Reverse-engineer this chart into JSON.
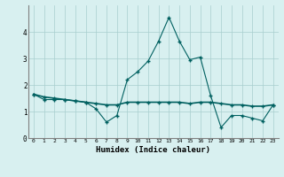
{
  "xlabel": "Humidex (Indice chaleur)",
  "x": [
    0,
    1,
    2,
    3,
    4,
    5,
    6,
    7,
    8,
    9,
    10,
    11,
    12,
    13,
    14,
    15,
    16,
    17,
    18,
    19,
    20,
    21,
    22,
    23
  ],
  "y_line1": [
    1.65,
    1.45,
    1.45,
    1.45,
    1.4,
    1.35,
    1.1,
    0.6,
    0.85,
    2.2,
    2.5,
    2.9,
    3.65,
    4.55,
    3.65,
    2.95,
    3.05,
    1.6,
    0.4,
    0.85,
    0.85,
    0.75,
    0.65,
    1.25
  ],
  "y_line2": [
    1.65,
    1.55,
    1.5,
    1.45,
    1.4,
    1.35,
    1.3,
    1.25,
    1.25,
    1.35,
    1.35,
    1.35,
    1.35,
    1.35,
    1.35,
    1.3,
    1.35,
    1.35,
    1.3,
    1.25,
    1.25,
    1.2,
    1.2,
    1.25
  ],
  "line_color": "#006060",
  "bg_color": "#d8f0f0",
  "grid_color": "#a8cece",
  "ylim": [
    0,
    5
  ],
  "yticks": [
    0,
    1,
    2,
    3,
    4
  ],
  "xlim": [
    -0.5,
    23.5
  ]
}
